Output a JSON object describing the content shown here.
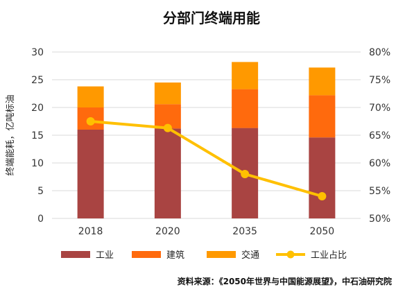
{
  "chart_data": {
    "type": "bar",
    "title": "分部门终端用能",
    "ylabel": "终端能耗，亿吨标油",
    "categories": [
      "2018",
      "2020",
      "2035",
      "2050"
    ],
    "ylim": [
      0,
      30
    ],
    "y2lim": [
      0.5,
      0.8
    ],
    "yticks": [
      "0",
      "5",
      "10",
      "15",
      "20",
      "25",
      "30"
    ],
    "y2ticks": [
      "50%",
      "55%",
      "60%",
      "65%",
      "70%",
      "75%",
      "80%"
    ],
    "stacked": true,
    "series": [
      {
        "name": "工业",
        "type": "bar",
        "values": [
          16.0,
          16.2,
          16.3,
          14.6
        ],
        "color": "#A94442"
      },
      {
        "name": "建筑",
        "type": "bar",
        "values": [
          4.0,
          4.4,
          7.0,
          7.6
        ],
        "color": "#FF6A0D"
      },
      {
        "name": "交通",
        "type": "bar",
        "values": [
          3.8,
          3.9,
          4.9,
          5.0
        ],
        "color": "#FF9900"
      },
      {
        "name": "工业占比",
        "type": "line",
        "axis": "right",
        "values": [
          0.675,
          0.663,
          0.58,
          0.54
        ],
        "color": "#FFC000"
      }
    ],
    "legend_position": "bottom",
    "source": "资料来源：《2050年世界与中国能源展望》，中石油研究院",
    "grid": true
  }
}
